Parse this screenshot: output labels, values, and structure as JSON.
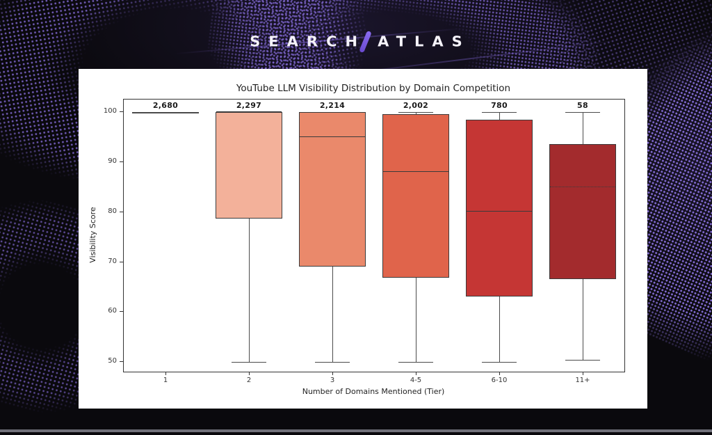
{
  "logo": {
    "part1": "SEARCH",
    "part2": "ATLAS",
    "slash_color": "#7a5ce0"
  },
  "background": {
    "base_color": "#0a090d",
    "dot_color": "#8168d2",
    "bottom_strip_color": "#70707a"
  },
  "chart_data": {
    "type": "boxplot",
    "title": "YouTube LLM Visibility Distribution by Domain Competition",
    "xlabel": "Number of Domains Mentioned (Tier)",
    "ylabel": "Visibility Score",
    "ylim": [
      48,
      102.5
    ],
    "yticks": [
      50,
      60,
      70,
      80,
      90,
      100
    ],
    "grid": false,
    "categories": [
      "1",
      "2",
      "3",
      "4-5",
      "6-10",
      "11+"
    ],
    "counts": [
      "2,680",
      "2,297",
      "2,214",
      "2,002",
      "780",
      "58"
    ],
    "boxes": [
      {
        "label": "1",
        "count": "2,680",
        "min": 100,
        "q1": 100,
        "median": 100,
        "q3": 100,
        "max": 100,
        "color": "#f9d7c9"
      },
      {
        "label": "2",
        "count": "2,297",
        "min": 50,
        "q1": 78.7,
        "median": 100,
        "q3": 100,
        "max": 100,
        "color": "#f3b19a"
      },
      {
        "label": "3",
        "count": "2,214",
        "min": 50,
        "q1": 69,
        "median": 95,
        "q3": 100,
        "max": 100,
        "color": "#ea896b"
      },
      {
        "label": "4-5",
        "count": "2,002",
        "min": 50,
        "q1": 66.8,
        "median": 88,
        "q3": 99.6,
        "max": 100,
        "color": "#e0644b"
      },
      {
        "label": "6-10",
        "count": "780",
        "min": 50,
        "q1": 63,
        "median": 80,
        "q3": 98.4,
        "max": 100,
        "color": "#c53634"
      },
      {
        "label": "11+",
        "count": "58",
        "min": 50.3,
        "q1": 66.6,
        "median": 85,
        "q3": 93.6,
        "max": 100,
        "color": "#a32b2d",
        "median_style": "dotted"
      }
    ],
    "colors": {
      "box_edge": "#3a3a3a",
      "whisker": "#4a4a4a",
      "axis": "#333333",
      "panel_bg": "#ffffff",
      "text": "#222222",
      "count_text": "#1a1a1a"
    }
  }
}
